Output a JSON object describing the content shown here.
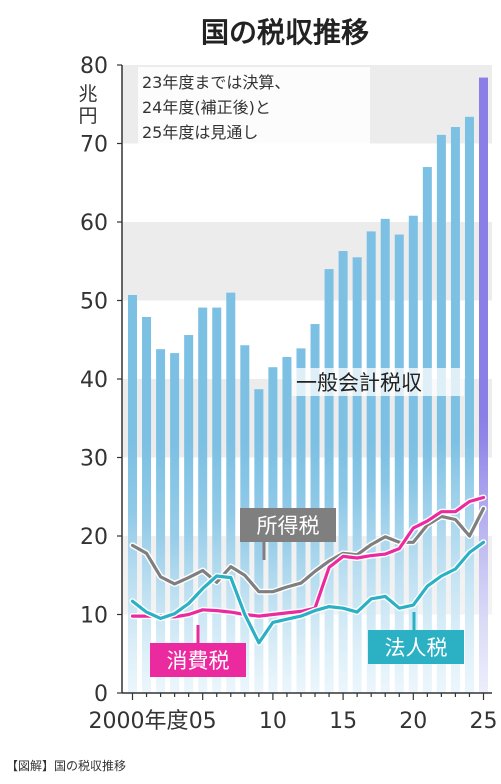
{
  "chart_data": {
    "type": "bar+line",
    "title": "国の税収推移",
    "unit_label": "兆円",
    "note_lines": [
      "23年度までは決算、",
      "24年度(補正後)と",
      "25年度は見通し"
    ],
    "y_ticks": [
      "0",
      "10",
      "20",
      "30",
      "40",
      "50",
      "60",
      "70",
      "80"
    ],
    "ylim": [
      0,
      80
    ],
    "x_tick_labels": [
      "2000年度",
      "05",
      "10",
      "15",
      "20",
      "25"
    ],
    "years": [
      2000,
      2001,
      2002,
      2003,
      2004,
      2005,
      2006,
      2007,
      2008,
      2009,
      2010,
      2011,
      2012,
      2013,
      2014,
      2015,
      2016,
      2017,
      2018,
      2019,
      2020,
      2021,
      2022,
      2023,
      2024,
      2025
    ],
    "grid": "horizontal bands",
    "bar_series": {
      "name": "一般会計税収",
      "values": [
        50.7,
        47.9,
        43.8,
        43.3,
        45.6,
        49.1,
        49.1,
        51.0,
        44.3,
        38.7,
        41.5,
        42.8,
        43.9,
        47.0,
        54.0,
        56.3,
        55.5,
        58.8,
        60.4,
        58.4,
        60.8,
        67.0,
        71.1,
        72.1,
        73.4,
        78.4
      ],
      "color": "#7cc0e3",
      "projected_from_index": 25,
      "projected_color": "#8a7fe6"
    },
    "line_series": [
      {
        "name": "所得税",
        "color": "#7f7f7f",
        "values": [
          18.8,
          17.8,
          14.8,
          13.9,
          14.7,
          15.6,
          14.1,
          16.1,
          15.0,
          12.9,
          12.9,
          13.5,
          14.0,
          15.5,
          16.8,
          17.8,
          17.6,
          18.9,
          19.9,
          19.2,
          19.2,
          21.4,
          22.5,
          22.1,
          20.0,
          23.5
        ]
      },
      {
        "name": "消費税",
        "color": "#ec2a9f",
        "values": [
          9.8,
          9.8,
          9.8,
          9.7,
          10.0,
          10.6,
          10.5,
          10.3,
          10.0,
          9.8,
          10.0,
          10.2,
          10.4,
          10.8,
          16.0,
          17.4,
          17.2,
          17.5,
          17.7,
          18.4,
          21.0,
          21.9,
          23.1,
          23.1,
          24.4,
          24.9
        ]
      },
      {
        "name": "法人税",
        "color": "#2bb0c4",
        "values": [
          11.7,
          10.3,
          9.5,
          10.1,
          11.4,
          13.3,
          14.9,
          14.7,
          10.0,
          6.4,
          9.0,
          9.4,
          9.8,
          10.5,
          11.0,
          10.8,
          10.3,
          12.0,
          12.3,
          10.8,
          11.2,
          13.6,
          14.9,
          15.8,
          17.9,
          19.2
        ]
      }
    ],
    "annotation_labels": {
      "bar": "一般会計税収",
      "income": "所得税",
      "consumption": "消費税",
      "corporate": "法人税"
    }
  },
  "caption": "【図解】国の税収推移"
}
